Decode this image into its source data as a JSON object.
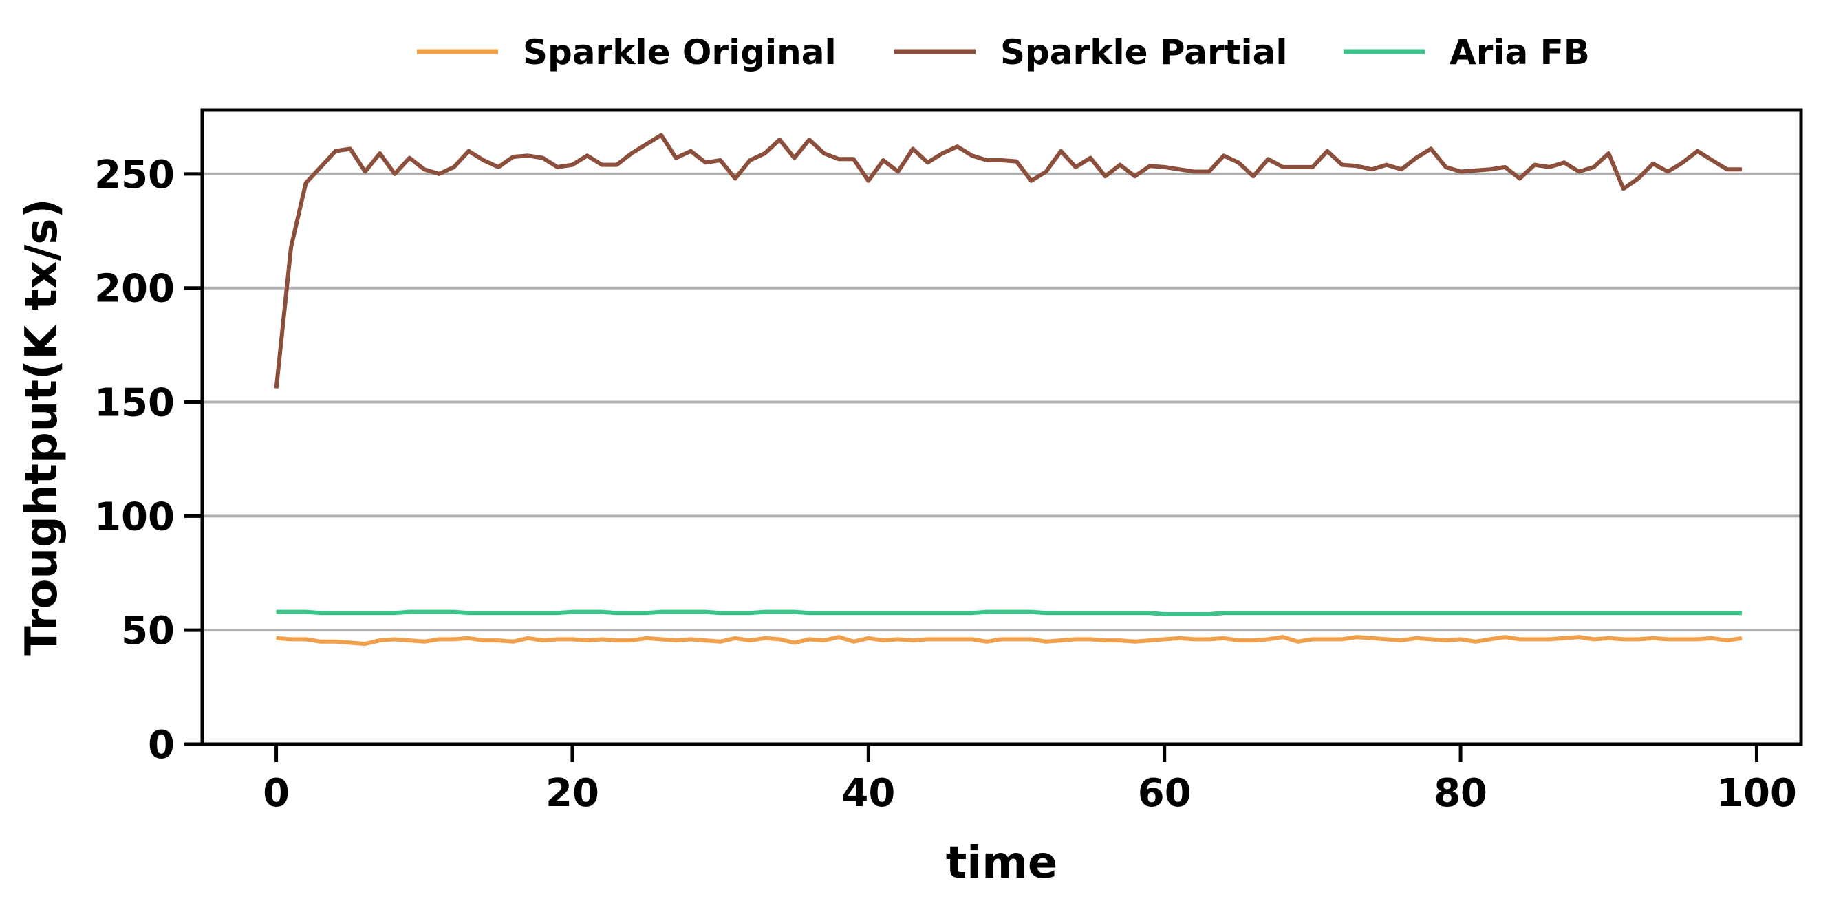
{
  "chart_data": {
    "type": "line",
    "xlabel": "time",
    "ylabel": "Troughtput(K tx/s)",
    "xlim": [
      -5,
      103
    ],
    "ylim": [
      0,
      278
    ],
    "x_ticks": [
      "0",
      "20",
      "40",
      "60",
      "80",
      "100"
    ],
    "y_ticks": [
      "0",
      "50",
      "100",
      "150",
      "200",
      "250"
    ],
    "grid": "horizontal",
    "legend_position": "top",
    "x": [
      0,
      1,
      2,
      3,
      4,
      5,
      6,
      7,
      8,
      9,
      10,
      11,
      12,
      13,
      14,
      15,
      16,
      17,
      18,
      19,
      20,
      21,
      22,
      23,
      24,
      25,
      26,
      27,
      28,
      29,
      30,
      31,
      32,
      33,
      34,
      35,
      36,
      37,
      38,
      39,
      40,
      41,
      42,
      43,
      44,
      45,
      46,
      47,
      48,
      49,
      50,
      51,
      52,
      53,
      54,
      55,
      56,
      57,
      58,
      59,
      60,
      61,
      62,
      63,
      64,
      65,
      66,
      67,
      68,
      69,
      70,
      71,
      72,
      73,
      74,
      75,
      76,
      77,
      78,
      79,
      80,
      81,
      82,
      83,
      84,
      85,
      86,
      87,
      88,
      89,
      90,
      91,
      92,
      93,
      94,
      95,
      96,
      97,
      98,
      99
    ],
    "series": [
      {
        "name": "Sparkle Original",
        "color": "#f0a04b",
        "values": [
          46.5,
          46,
          46,
          45,
          45,
          44.5,
          44,
          45.5,
          46,
          45.5,
          45,
          46,
          46,
          46.5,
          45.5,
          45.5,
          45,
          46.5,
          45.5,
          46,
          46,
          45.5,
          46,
          45.5,
          45.5,
          46.5,
          46,
          45.5,
          46,
          45.5,
          45,
          46.5,
          45.5,
          46.5,
          46,
          44.5,
          46,
          45.5,
          47,
          45,
          46.5,
          45.5,
          46,
          45.5,
          46,
          46,
          46,
          46,
          45,
          46,
          46,
          46,
          45,
          45.5,
          46,
          46,
          45.5,
          45.5,
          45,
          45.5,
          46,
          46.5,
          46,
          46,
          46.5,
          45.5,
          45.5,
          46,
          47,
          45,
          46,
          46,
          46,
          47,
          46.5,
          46,
          45.5,
          46.5,
          46,
          45.5,
          46,
          45,
          46,
          47,
          46,
          46,
          46,
          46.5,
          47,
          46,
          46.5,
          46,
          46,
          46.5,
          46,
          46,
          46,
          46.5,
          45.5,
          46.5
        ]
      },
      {
        "name": "Sparkle Partial",
        "color": "#8c4f3c",
        "values": [
          156,
          218,
          246,
          253,
          260,
          261,
          251,
          259,
          250,
          257,
          252,
          250,
          253,
          260,
          256,
          253,
          257.5,
          258,
          257,
          253,
          254,
          258,
          254,
          254,
          259,
          263,
          267,
          257,
          260,
          255,
          256,
          248,
          256,
          259,
          265,
          257,
          265,
          259,
          256.5,
          256.5,
          247,
          256,
          251,
          261,
          255,
          259,
          262,
          258,
          256,
          256,
          255.5,
          247,
          251,
          260,
          253,
          257,
          249,
          254,
          249,
          253.5,
          253,
          252,
          251,
          251,
          258,
          255,
          249,
          256.5,
          253,
          253,
          253,
          260,
          254,
          253.5,
          252,
          254,
          252,
          257,
          261,
          253,
          251,
          251.5,
          252,
          253,
          248,
          254,
          253,
          255,
          251,
          253,
          259,
          243.5,
          248,
          254.5,
          251,
          255,
          260,
          256,
          252,
          252
        ]
      },
      {
        "name": "Aria FB",
        "color": "#3fc38a",
        "values": [
          58,
          58,
          58,
          57.5,
          57.5,
          57.5,
          57.5,
          57.5,
          57.5,
          58,
          58,
          58,
          58,
          57.5,
          57.5,
          57.5,
          57.5,
          57.5,
          57.5,
          57.5,
          58,
          58,
          58,
          57.5,
          57.5,
          57.5,
          58,
          58,
          58,
          58,
          57.5,
          57.5,
          57.5,
          58,
          58,
          58,
          57.5,
          57.5,
          57.5,
          57.5,
          57.5,
          57.5,
          57.5,
          57.5,
          57.5,
          57.5,
          57.5,
          57.5,
          58,
          58,
          58,
          58,
          57.5,
          57.5,
          57.5,
          57.5,
          57.5,
          57.5,
          57.5,
          57.5,
          57,
          57,
          57,
          57,
          57.5,
          57.5,
          57.5,
          57.5,
          57.5,
          57.5,
          57.5,
          57.5,
          57.5,
          57.5,
          57.5,
          57.5,
          57.5,
          57.5,
          57.5,
          57.5,
          57.5,
          57.5,
          57.5,
          57.5,
          57.5,
          57.5,
          57.5,
          57.5,
          57.5,
          57.5,
          57.5,
          57.5,
          57.5,
          57.5,
          57.5,
          57.5,
          57.5,
          57.5,
          57.5,
          57.5
        ]
      }
    ]
  }
}
